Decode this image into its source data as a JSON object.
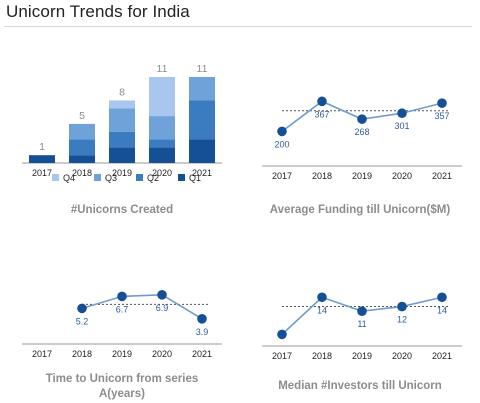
{
  "page": {
    "title": "Unicorn Trends for India"
  },
  "colors": {
    "Q1": "#154f96",
    "Q2": "#3b7bc0",
    "Q3": "#6fa2d8",
    "Q4": "#a9c7ee",
    "line": "#6f9bd0",
    "marker": "#154f96",
    "reference": "#555555",
    "axis": "#9a9a9a",
    "caption": "#8c8c8c",
    "point_label": "#2e5c9a"
  },
  "chart_data": [
    {
      "id": "unicorns-created",
      "type": "bar",
      "stacked": true,
      "title": "#Unicorns Created",
      "categories": [
        "2017",
        "2018",
        "2019",
        "2020",
        "2021"
      ],
      "totals": [
        1,
        5,
        8,
        11,
        11
      ],
      "series": [
        {
          "name": "Q1",
          "values": [
            1,
            1,
            2,
            2,
            3
          ]
        },
        {
          "name": "Q2",
          "values": [
            0,
            2,
            2,
            1,
            5
          ]
        },
        {
          "name": "Q3",
          "values": [
            0,
            2,
            3,
            3,
            3
          ]
        },
        {
          "name": "Q4",
          "values": [
            0,
            0,
            1,
            5,
            0
          ]
        }
      ],
      "ylim": [
        0,
        11
      ],
      "legend": "bottom"
    },
    {
      "id": "average-funding",
      "type": "line",
      "title": "Average Funding till Unicorn($M)",
      "categories": [
        "2017",
        "2018",
        "2019",
        "2020",
        "2021"
      ],
      "values": [
        200,
        367,
        268,
        301,
        357
      ],
      "labels": [
        "200",
        "367",
        "268",
        "301",
        "357"
      ],
      "label_pos": [
        "below",
        "below",
        "below",
        "below",
        "below"
      ],
      "reference_value": 315,
      "ylim": [
        180,
        380
      ]
    },
    {
      "id": "time-to-unicorn",
      "type": "line",
      "title": "Time to Unicorn from series A(years)",
      "categories": [
        "2017",
        "2018",
        "2019",
        "2020",
        "2021"
      ],
      "x_start": 1,
      "values": [
        5.2,
        6.7,
        6.9,
        3.9
      ],
      "labels": [
        "5.2",
        "6.7",
        "6.9",
        "3.9"
      ],
      "label_pos": [
        "below",
        "below",
        "below",
        "below"
      ],
      "reference_value": 5.7,
      "ylim": [
        3.5,
        7.5
      ]
    },
    {
      "id": "median-investors",
      "type": "line",
      "title": "Median #Investors till Unicorn",
      "categories": [
        "2017",
        "2018",
        "2019",
        "2020",
        "2021"
      ],
      "values": [
        6,
        14,
        11,
        12,
        14
      ],
      "labels": [
        "",
        "14",
        "11",
        "12",
        "14"
      ],
      "label_pos": [
        "below",
        "below",
        "below",
        "below",
        "below"
      ],
      "reference_value": 12,
      "ylim": [
        5,
        16
      ]
    }
  ]
}
